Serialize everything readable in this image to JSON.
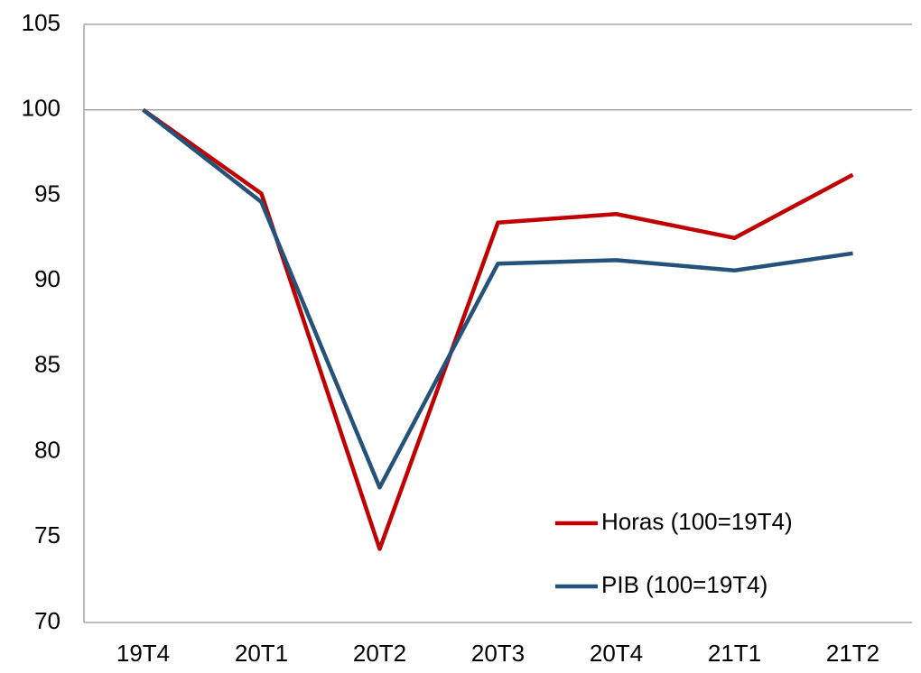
{
  "chart_data": {
    "type": "line",
    "categories": [
      "19T4",
      "20T1",
      "20T2",
      "20T3",
      "20T4",
      "21T1",
      "21T2"
    ],
    "series": [
      {
        "name": "Horas (100=19T4)",
        "color": "#c00000",
        "values": [
          100,
          95.1,
          74.3,
          93.4,
          93.9,
          92.5,
          96.2
        ]
      },
      {
        "name": "PIB (100=19T4)",
        "color": "#24527a",
        "values": [
          100,
          94.6,
          77.9,
          91.0,
          91.2,
          90.6,
          91.6
        ]
      }
    ],
    "ylim": [
      70,
      105
    ],
    "yticks": [
      70,
      75,
      80,
      85,
      90,
      95,
      100,
      105
    ],
    "reference_line": 100,
    "legend": "lower right"
  }
}
